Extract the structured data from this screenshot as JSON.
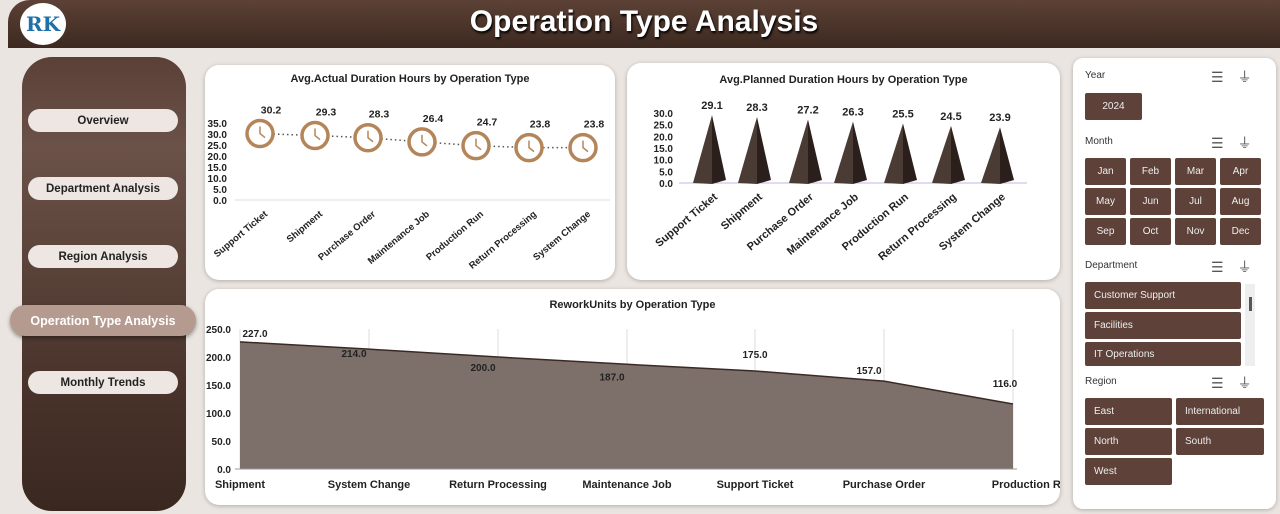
{
  "header": {
    "title": "Operation Type Analysis",
    "logo_text": "RK"
  },
  "nav": [
    {
      "label": "Overview"
    },
    {
      "label": "Department Analysis"
    },
    {
      "label": "Region Analysis"
    },
    {
      "label": "Operation Type Analysis",
      "active": true
    },
    {
      "label": "Monthly Trends"
    }
  ],
  "colors": {
    "brand": "#5e4239",
    "accent": "#b5855a",
    "active_nav": "#b59b8f"
  },
  "chart_data": [
    {
      "type": "line",
      "title": "Avg.Actual Duration Hours by Operation Type",
      "categories": [
        "Support Ticket",
        "Shipment",
        "Purchase Order",
        "Maintenance Job",
        "Production Run",
        "Return Processing",
        "System Change"
      ],
      "values": [
        30.2,
        29.3,
        28.3,
        26.4,
        24.7,
        23.8,
        23.8
      ],
      "data_labels": [
        "30.2",
        "29.3",
        "28.3",
        "26.4",
        "24.7",
        "23.8",
        "23.8"
      ],
      "yticks": [
        "0.0",
        "5.0",
        "10.0",
        "15.0",
        "20.0",
        "25.0",
        "30.0",
        "35.0"
      ],
      "ylim": [
        0,
        35
      ],
      "marker": "clock-icon"
    },
    {
      "type": "bar",
      "title": "Avg.Planned Duration Hours by Operation Type",
      "categories": [
        "Support Ticket",
        "Shipment",
        "Purchase Order",
        "Maintenance Job",
        "Production Run",
        "Return Processing",
        "System Change"
      ],
      "values": [
        29.1,
        28.3,
        27.2,
        26.3,
        25.5,
        24.5,
        23.9
      ],
      "data_labels": [
        "29.1",
        "28.3",
        "27.2",
        "26.3",
        "25.5",
        "24.5",
        "23.9"
      ],
      "yticks": [
        "0.0",
        "5.0",
        "10.0",
        "15.0",
        "20.0",
        "25.0",
        "30.0"
      ],
      "ylim": [
        0,
        30
      ],
      "shape": "pyramid"
    },
    {
      "type": "area",
      "title": "ReworkUnits by Operation Type",
      "categories": [
        "Shipment",
        "System Change",
        "Return Processing",
        "Maintenance Job",
        "Support Ticket",
        "Purchase Order",
        "Production Run"
      ],
      "values": [
        227,
        214,
        200,
        187,
        175,
        157,
        116
      ],
      "data_labels": [
        "227.0",
        "214.0",
        "200.0",
        "187.0",
        "175.0",
        "157.0",
        "116.0"
      ],
      "yticks": [
        "0.0",
        "50.0",
        "100.0",
        "150.0",
        "200.0",
        "250.0"
      ],
      "ylim": [
        0,
        250
      ]
    }
  ],
  "filters": {
    "year": {
      "label": "Year",
      "items": [
        "2024"
      ]
    },
    "month": {
      "label": "Month",
      "items": [
        "Jan",
        "Feb",
        "Mar",
        "Apr",
        "May",
        "Jun",
        "Jul",
        "Aug",
        "Sep",
        "Oct",
        "Nov",
        "Dec"
      ]
    },
    "department": {
      "label": "Department",
      "items": [
        "Customer Support",
        "Facilities",
        "IT Operations"
      ]
    },
    "region": {
      "label": "Region",
      "items": [
        "East",
        "International",
        "North",
        "South",
        "West"
      ]
    }
  }
}
